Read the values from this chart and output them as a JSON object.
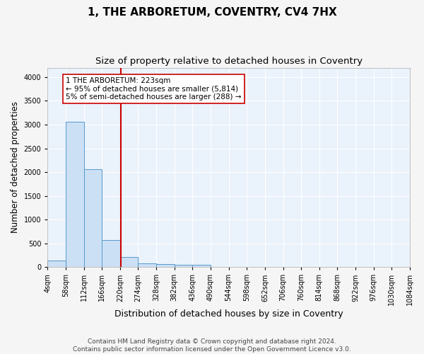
{
  "title1": "1, THE ARBORETUM, COVENTRY, CV4 7HX",
  "title2": "Size of property relative to detached houses in Coventry",
  "xlabel": "Distribution of detached houses by size in Coventry",
  "ylabel": "Number of detached properties",
  "bin_edges": [
    4,
    58,
    112,
    166,
    220,
    274,
    328,
    382,
    436,
    490,
    544,
    598,
    652,
    706,
    760,
    814,
    868,
    922,
    976,
    1030,
    1084
  ],
  "bar_heights": [
    140,
    3060,
    2060,
    570,
    210,
    75,
    55,
    45,
    45,
    0,
    0,
    0,
    0,
    0,
    0,
    0,
    0,
    0,
    0,
    0
  ],
  "bar_color": "#cce0f5",
  "bar_edge_color": "#5599cc",
  "vline_x": 223,
  "vline_color": "#cc0000",
  "annotation_text": "1 THE ARBORETUM: 223sqm\n← 95% of detached houses are smaller (5,814)\n5% of semi-detached houses are larger (288) →",
  "annotation_box_color": "#ffffff",
  "annotation_box_edge_color": "#cc0000",
  "ylim": [
    0,
    4200
  ],
  "yticks": [
    0,
    500,
    1000,
    1500,
    2000,
    2500,
    3000,
    3500,
    4000
  ],
  "footer_text": "Contains HM Land Registry data © Crown copyright and database right 2024.\nContains public sector information licensed under the Open Government Licence v3.0.",
  "bg_color": "#eaf2fb",
  "grid_color": "#ffffff",
  "fig_bg_color": "#f5f5f5",
  "title1_fontsize": 11,
  "title2_fontsize": 9.5,
  "xlabel_fontsize": 9,
  "ylabel_fontsize": 8.5,
  "tick_fontsize": 7,
  "annotation_fontsize": 7.5,
  "footer_fontsize": 6.5
}
